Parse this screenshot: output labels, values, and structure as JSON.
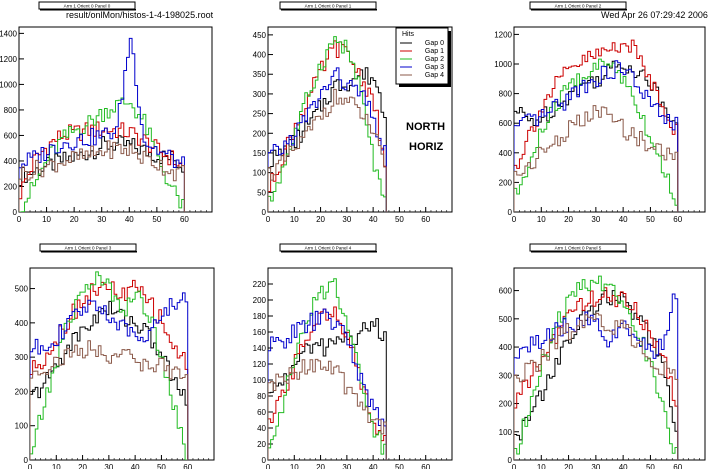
{
  "header": {
    "file_path": "result/onlMon/histos-1-4-198025.root",
    "timestamp": "Wed Apr 26 07:29:42 2006"
  },
  "overlay": {
    "line1": "NORTH",
    "line2": "HORIZ"
  },
  "legend": {
    "title": "Hits",
    "entries": [
      {
        "label": "Gap 0",
        "color": "#000000"
      },
      {
        "label": "Gap 1",
        "color": "#cc0000"
      },
      {
        "label": "Gap 2",
        "color": "#22bb22"
      },
      {
        "label": "Gap 3",
        "color": "#0000cc"
      },
      {
        "label": "Gap 4",
        "color": "#8b5a4a"
      }
    ]
  },
  "colors": [
    "#000000",
    "#cc0000",
    "#22bb22",
    "#0000cc",
    "#8b5a4a"
  ],
  "chart_data": [
    {
      "type": "line",
      "title": "Arm 1 Orient 0 Panel 0",
      "xlim": [
        0,
        70
      ],
      "ylim": [
        0,
        1450
      ],
      "xticks": [
        0,
        10,
        20,
        30,
        40,
        50,
        60
      ],
      "yticks": [
        0,
        200,
        400,
        600,
        800,
        1000,
        1200,
        1400
      ],
      "x": [
        0,
        5,
        10,
        15,
        20,
        25,
        30,
        35,
        40,
        45,
        50,
        55,
        59
      ],
      "series": [
        {
          "values": [
            280,
            320,
            360,
            400,
            430,
            470,
            520,
            530,
            520,
            480,
            440,
            420,
            360
          ]
        },
        {
          "values": [
            150,
            400,
            520,
            600,
            620,
            640,
            650,
            640,
            620,
            560,
            480,
            420,
            350
          ]
        },
        {
          "values": [
            30,
            200,
            420,
            560,
            640,
            700,
            780,
            840,
            860,
            700,
            420,
            180,
            40
          ]
        },
        {
          "values": [
            380,
            420,
            480,
            540,
            560,
            580,
            600,
            640,
            1380,
            560,
            480,
            420,
            360
          ]
        },
        {
          "values": [
            300,
            330,
            360,
            400,
            420,
            440,
            480,
            500,
            480,
            420,
            380,
            320,
            300
          ]
        }
      ]
    },
    {
      "type": "line",
      "title": "Arm 1 Orient 0 Panel 1",
      "xlim": [
        0,
        70
      ],
      "ylim": [
        0,
        470
      ],
      "xticks": [
        0,
        10,
        20,
        30,
        40,
        50,
        60
      ],
      "yticks": [
        0,
        50,
        100,
        150,
        200,
        250,
        300,
        350,
        400,
        450
      ],
      "x": [
        0,
        5,
        10,
        15,
        20,
        25,
        30,
        35,
        40,
        44
      ],
      "series": [
        {
          "values": [
            130,
            150,
            180,
            220,
            270,
            320,
            330,
            350,
            340,
            250
          ]
        },
        {
          "values": [
            60,
            140,
            220,
            290,
            360,
            420,
            400,
            340,
            280,
            100
          ]
        },
        {
          "values": [
            20,
            110,
            200,
            300,
            380,
            440,
            410,
            300,
            120,
            20
          ]
        },
        {
          "values": [
            140,
            160,
            200,
            250,
            300,
            350,
            320,
            300,
            230,
            150
          ]
        },
        {
          "values": [
            100,
            120,
            160,
            200,
            250,
            290,
            280,
            250,
            200,
            100
          ]
        }
      ]
    },
    {
      "type": "line",
      "title": "Arm 1 Orient 0 Panel 2",
      "xlim": [
        0,
        70
      ],
      "ylim": [
        0,
        1250
      ],
      "xticks": [
        0,
        10,
        20,
        30,
        40,
        50,
        60
      ],
      "yticks": [
        0,
        200,
        400,
        600,
        800,
        1000,
        1200
      ],
      "x": [
        0,
        5,
        10,
        15,
        20,
        25,
        30,
        35,
        40,
        45,
        50,
        55,
        59
      ],
      "series": [
        {
          "values": [
            680,
            620,
            640,
            720,
            800,
            860,
            900,
            960,
            1000,
            960,
            860,
            700,
            640
          ]
        },
        {
          "values": [
            300,
            520,
            720,
            860,
            960,
            1020,
            1060,
            1100,
            1160,
            1060,
            880,
            700,
            540
          ]
        },
        {
          "values": [
            100,
            300,
            560,
            720,
            860,
            920,
            980,
            1000,
            900,
            720,
            480,
            260,
            80
          ]
        },
        {
          "values": [
            560,
            600,
            640,
            700,
            780,
            860,
            900,
            960,
            960,
            860,
            720,
            620,
            580
          ]
        },
        {
          "values": [
            240,
            320,
            400,
            480,
            560,
            620,
            680,
            640,
            560,
            500,
            440,
            400,
            360
          ]
        }
      ]
    },
    {
      "type": "line",
      "title": "Arm 1 Orient 0 Panel 3",
      "xlim": [
        0,
        70
      ],
      "ylim": [
        0,
        560
      ],
      "xticks": [
        0,
        10,
        20,
        30,
        40,
        50,
        60
      ],
      "yticks": [
        0,
        100,
        200,
        300,
        400,
        500
      ],
      "x": [
        0,
        5,
        10,
        15,
        20,
        25,
        30,
        35,
        40,
        45,
        50,
        55,
        59
      ],
      "series": [
        {
          "values": [
            180,
            220,
            280,
            340,
            380,
            420,
            440,
            420,
            400,
            360,
            300,
            220,
            180
          ]
        },
        {
          "values": [
            260,
            300,
            360,
            420,
            470,
            500,
            500,
            480,
            500,
            460,
            400,
            320,
            280
          ]
        },
        {
          "values": [
            20,
            160,
            300,
            420,
            500,
            530,
            500,
            440,
            480,
            420,
            300,
            140,
            20
          ]
        },
        {
          "values": [
            320,
            340,
            360,
            400,
            440,
            460,
            420,
            380,
            360,
            380,
            420,
            460,
            480
          ]
        },
        {
          "values": [
            250,
            270,
            290,
            310,
            320,
            320,
            310,
            300,
            290,
            280,
            270,
            260,
            250
          ]
        }
      ]
    },
    {
      "type": "line",
      "title": "Arm 1 Orient 0 Panel 4",
      "xlim": [
        0,
        70
      ],
      "ylim": [
        0,
        240
      ],
      "xticks": [
        0,
        10,
        20,
        30,
        40,
        50,
        60
      ],
      "yticks": [
        0,
        20,
        40,
        60,
        80,
        100,
        120,
        140,
        160,
        180,
        200,
        220
      ],
      "x": [
        0,
        5,
        10,
        15,
        20,
        25,
        30,
        35,
        40,
        44
      ],
      "series": [
        {
          "values": [
            80,
            100,
            120,
            140,
            140,
            150,
            150,
            160,
            170,
            150
          ]
        },
        {
          "values": [
            40,
            80,
            120,
            160,
            190,
            180,
            150,
            100,
            50,
            20
          ]
        },
        {
          "values": [
            20,
            70,
            130,
            180,
            210,
            220,
            170,
            100,
            40,
            10
          ]
        },
        {
          "values": [
            140,
            150,
            160,
            170,
            180,
            170,
            150,
            100,
            60,
            40
          ]
        },
        {
          "values": [
            90,
            100,
            110,
            120,
            120,
            110,
            90,
            70,
            50,
            40
          ]
        }
      ]
    },
    {
      "type": "line",
      "title": "Arm 1 Orient 0 Panel 5",
      "xlim": [
        0,
        70
      ],
      "ylim": [
        0,
        680
      ],
      "xticks": [
        0,
        10,
        20,
        30,
        40,
        50,
        60
      ],
      "yticks": [
        0,
        100,
        200,
        300,
        400,
        500,
        600
      ],
      "x": [
        0,
        5,
        10,
        15,
        20,
        25,
        30,
        35,
        40,
        45,
        50,
        55,
        59
      ],
      "series": [
        {
          "values": [
            80,
            140,
            240,
            340,
            430,
            500,
            560,
            580,
            560,
            500,
            420,
            300,
            80
          ]
        },
        {
          "values": [
            200,
            280,
            360,
            440,
            520,
            560,
            580,
            580,
            560,
            520,
            440,
            360,
            200
          ]
        },
        {
          "values": [
            20,
            180,
            340,
            480,
            560,
            620,
            640,
            620,
            560,
            460,
            320,
            160,
            20
          ]
        },
        {
          "values": [
            380,
            400,
            420,
            460,
            480,
            500,
            480,
            420,
            460,
            420,
            380,
            420,
            600
          ]
        },
        {
          "values": [
            280,
            320,
            360,
            420,
            460,
            480,
            500,
            480,
            460,
            420,
            360,
            320,
            280
          ]
        }
      ]
    }
  ]
}
